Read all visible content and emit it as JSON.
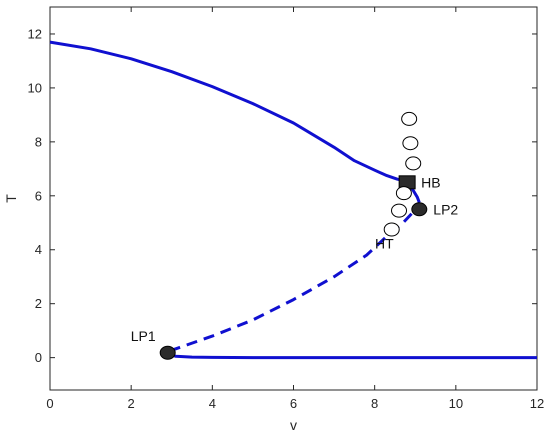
{
  "chart_data": {
    "type": "line",
    "title": "",
    "xlabel": "v",
    "ylabel": "T",
    "xlim": [
      0,
      12
    ],
    "ylim": [
      -1.2,
      13
    ],
    "xticks": [
      0,
      2,
      4,
      6,
      8,
      10,
      12
    ],
    "yticks": [
      0,
      2,
      4,
      6,
      8,
      10,
      12
    ],
    "grid": false,
    "series": [
      {
        "style": "solid",
        "color": "#1010d0",
        "x": [
          0,
          1,
          2,
          3,
          4,
          5,
          6,
          7,
          7.5,
          8,
          8.3,
          8.55,
          8.75,
          8.85
        ],
        "y": [
          11.7,
          11.45,
          11.08,
          10.6,
          10.05,
          9.42,
          8.7,
          7.8,
          7.3,
          6.95,
          6.75,
          6.62,
          6.55,
          6.5
        ]
      },
      {
        "style": "solid",
        "color": "#1010d0",
        "x": [
          8.8,
          8.95,
          9.05,
          9.1
        ],
        "y": [
          6.5,
          6.2,
          5.95,
          5.75
        ]
      },
      {
        "style": "dashed",
        "color": "#1010d0",
        "x": [
          2.95,
          4,
          5,
          6,
          7,
          7.8,
          8.3,
          8.7,
          8.95,
          9.1
        ],
        "y": [
          0.25,
          0.8,
          1.4,
          2.15,
          3.0,
          3.8,
          4.5,
          5.0,
          5.4,
          5.75
        ]
      },
      {
        "style": "solid",
        "color": "#1010d0",
        "x": [
          2.9,
          3.1,
          3.5,
          4,
          5,
          6,
          8,
          10,
          12
        ],
        "y": [
          0.15,
          0.05,
          0.02,
          0.01,
          0,
          0,
          0,
          0,
          0
        ]
      }
    ],
    "markers": [
      {
        "type": "filled-circle",
        "x": 2.9,
        "y": 0.18,
        "label": "LP1",
        "label_side": "left-above"
      },
      {
        "type": "filled-circle",
        "x": 9.1,
        "y": 5.5,
        "label": "LP2",
        "label_side": "right"
      },
      {
        "type": "filled-square",
        "x": 8.8,
        "y": 6.5,
        "label": "HB",
        "label_side": "right"
      },
      {
        "type": "open-circle",
        "x": 8.42,
        "y": 4.75,
        "label": "HT",
        "label_side": "below-left"
      },
      {
        "type": "open-circle",
        "x": 8.6,
        "y": 5.45,
        "label": "",
        "label_side": ""
      },
      {
        "type": "open-circle",
        "x": 8.72,
        "y": 6.1,
        "label": "",
        "label_side": ""
      },
      {
        "type": "open-circle",
        "x": 8.95,
        "y": 7.2,
        "label": "",
        "label_side": ""
      },
      {
        "type": "open-circle",
        "x": 8.88,
        "y": 7.95,
        "label": "",
        "label_side": ""
      },
      {
        "type": "open-circle",
        "x": 8.85,
        "y": 8.85,
        "label": "",
        "label_side": ""
      }
    ]
  }
}
